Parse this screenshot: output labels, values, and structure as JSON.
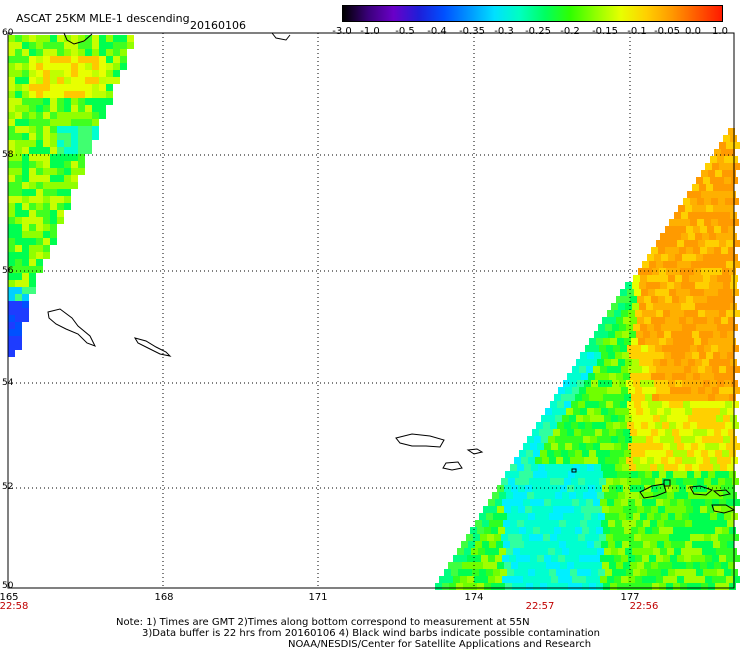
{
  "header": {
    "product": "ASCAT 25KM MLE-1 descending",
    "date": "20160106"
  },
  "colorbar": {
    "labels": [
      "-3.0",
      "-1.0",
      "-0.5",
      "-0.4",
      "-0.35",
      "-0.3",
      "-0.25",
      "-0.2",
      "-0.15",
      "-0.1",
      "-0.05",
      "0.0",
      "1.0"
    ],
    "colors": [
      "#000000",
      "#3a007a",
      "#6a00c8",
      "#1e1ed8",
      "#0050ff",
      "#0096ff",
      "#00e0ff",
      "#00ffc0",
      "#00ff60",
      "#30ff00",
      "#90ff00",
      "#e8ff00",
      "#ffd000",
      "#ff9a00",
      "#ff5a00",
      "#ff1a00"
    ]
  },
  "map": {
    "lat_labels": [
      "60",
      "58",
      "56",
      "54",
      "52",
      "50"
    ],
    "lon_labels": [
      "165",
      "168",
      "171",
      "174",
      "177"
    ],
    "time_labels": [
      "22:58",
      "22:57",
      "22:56"
    ]
  },
  "notes": {
    "line1": "Note: 1) Times are GMT 2)Times along bottom correspond to measurement at 55N",
    "line2": "3)Data buffer is 22 hrs from 20160106 4) Black wind barbs indicate possible contamination",
    "line3": "NOAA/NESDIS/Center for Satellite Applications and Research"
  }
}
